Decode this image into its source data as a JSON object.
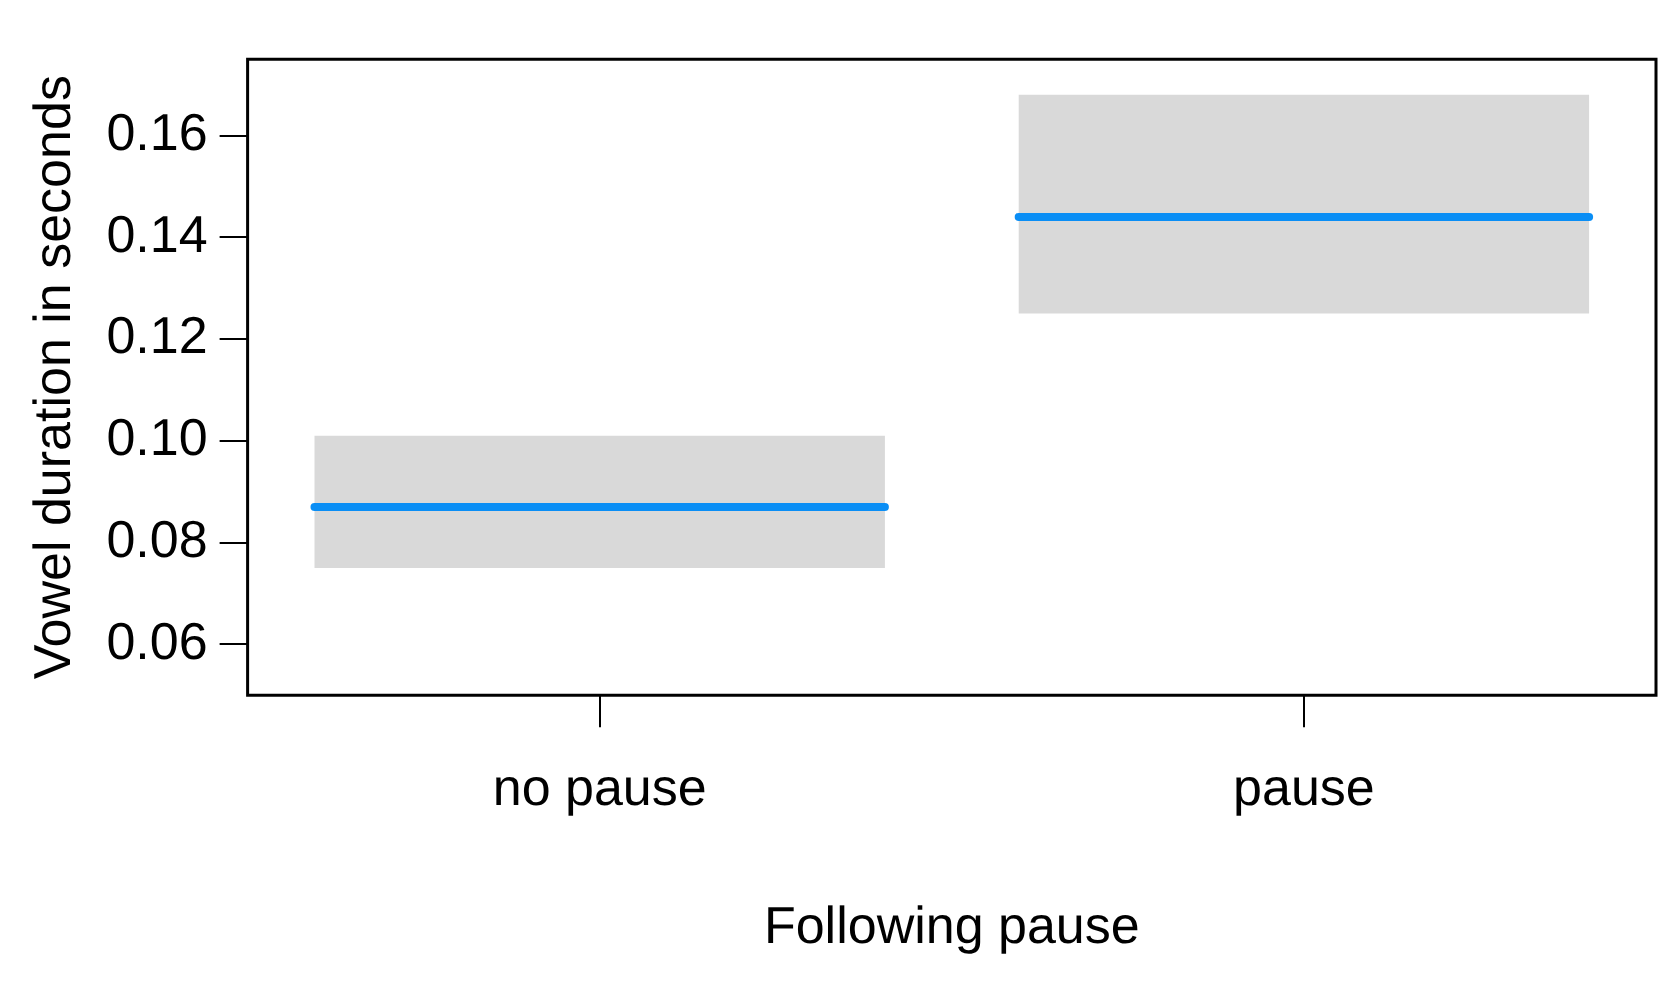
{
  "chart_data": {
    "type": "box",
    "xlabel": "Following pause",
    "ylabel": "Vowel duration in seconds",
    "categories": [
      "no pause",
      "pause"
    ],
    "series": [
      {
        "color": "#d9d9d9",
        "boxes": [
          {
            "low": 0.075,
            "q1": 0.075,
            "median": 0.087,
            "q3": 0.101,
            "high": 0.101
          },
          {
            "low": 0.125,
            "q1": 0.125,
            "median": 0.144,
            "q3": 0.168,
            "high": 0.168
          }
        ]
      }
    ],
    "ylim": [
      0.05,
      0.175
    ],
    "yticks": [
      {
        "value": 0.06,
        "label": "0.06"
      },
      {
        "value": 0.08,
        "label": "0.08"
      },
      {
        "value": 0.1,
        "label": "0.10"
      },
      {
        "value": 0.12,
        "label": "0.12"
      },
      {
        "value": 0.14,
        "label": "0.14"
      },
      {
        "value": 0.16,
        "label": "0.16"
      }
    ],
    "grid": false,
    "legend": false
  }
}
